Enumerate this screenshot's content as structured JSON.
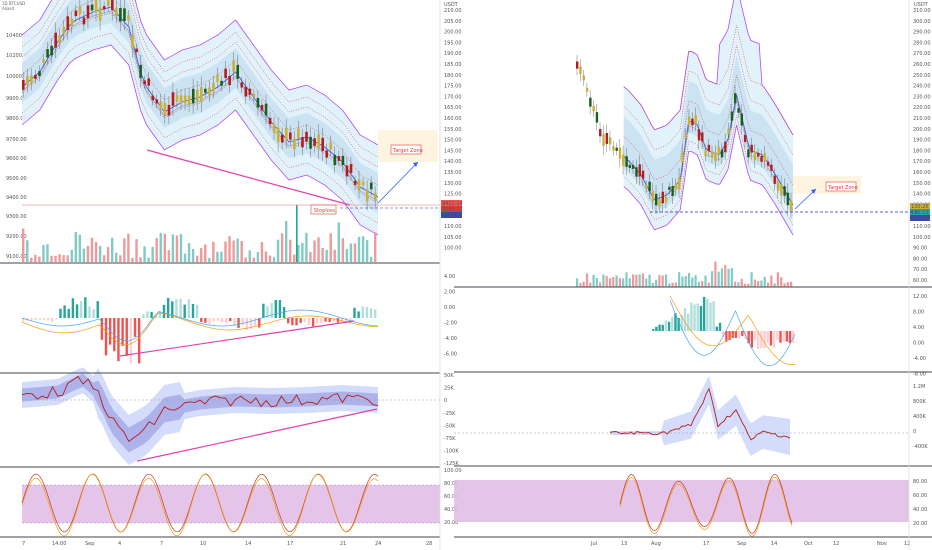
{
  "colors": {
    "up": "#26a69a",
    "down": "#ef5350",
    "gold": "#c9b037",
    "dark_green": "#1b5e20",
    "env_fill": "#dff1fb",
    "band_mid": "#c9cdea",
    "outer_band": "#b24bf3",
    "trend": "#e040b0",
    "purple_zone": "#e1bee7",
    "target_fill": "#fff1d6",
    "target_border": "#f4c07a",
    "target_text": "#e53935",
    "dash_blue": "#2929c4",
    "divider": "#434651",
    "ma1": "#4c5bd4",
    "ma2": "#9aa0c8",
    "stoch_k": "#c0392b",
    "stoch_d": "#f39c12",
    "macd_line": "#42a5f5",
    "macd_signal": "#ff9800",
    "obv_line": "#b71c1c"
  },
  "left_chart": {
    "header_lines": [
      "1D BTCUSD",
      "Aliasd"
    ],
    "currency": "USDT",
    "price_axis": [
      "10400.00",
      "10200.00",
      "10000.00",
      "9900.00",
      "9800.00",
      "9700.00",
      "9600.00",
      "9500.00",
      "9400.00",
      "9300.00",
      "9200.00",
      "9100.00"
    ],
    "volume_axis": [
      "210.00",
      "205.00",
      "200.00",
      "195.00",
      "190.00",
      "185.00",
      "180.00",
      "175.00",
      "170.00",
      "165.00",
      "160.00",
      "155.00",
      "150.00",
      "145.00",
      "140.00",
      "135.00",
      "130.00",
      "125.00",
      "120.00",
      "115.00",
      "110.00",
      "105.00",
      "100.00"
    ],
    "macd_axis": [
      "4.00",
      "2.00",
      "0.00",
      "-2.00",
      "-4.00",
      "-6.00"
    ],
    "obv_axis": [
      "50K",
      "25K",
      "0",
      "-25K",
      "-50K",
      "-75K",
      "-100K",
      "-125K"
    ],
    "stoch_axis": [
      "100.00",
      "80.00",
      "60.00",
      "40.00",
      "20.00"
    ],
    "x_axis": [
      "7",
      "14:00",
      "Sep",
      "4",
      "7",
      "10",
      "14",
      "17",
      "21",
      "24",
      "28"
    ],
    "price_badges": [
      "9411.14",
      "9380.17",
      "9321.77"
    ],
    "stoploss_label": "Stoploss",
    "target_label": "Target Zone"
  },
  "right_chart": {
    "currency": "USDT",
    "price_axis": [
      "310.00",
      "300.00",
      "290.00",
      "280.00",
      "270.00",
      "260.00",
      "250.00",
      "240.00",
      "230.00",
      "220.00",
      "210.00",
      "200.00",
      "190.00",
      "180.00",
      "170.00",
      "160.00",
      "150.00",
      "140.00",
      "130.00",
      "120.00",
      "110.00",
      "100.00",
      "90.00",
      "80.00",
      "70.00",
      "60.00"
    ],
    "macd_axis": [
      "12.00",
      "8.00",
      "4.00",
      "0.00",
      "-4.00",
      "-8.00"
    ],
    "obv_axis": [
      "1.2M",
      "800K",
      "400K",
      "0",
      "-400K"
    ],
    "stoch_axis": [
      "80.00",
      "60.00",
      "40.00",
      "20.00"
    ],
    "x_axis": [
      "Jul",
      "13",
      "Aug",
      "17",
      "Sep",
      "14",
      "Oct",
      "12",
      "Nov",
      "12"
    ],
    "price_badges": [
      "130.26",
      "121.12",
      "114.86"
    ],
    "target_label": "Target Zone"
  }
}
